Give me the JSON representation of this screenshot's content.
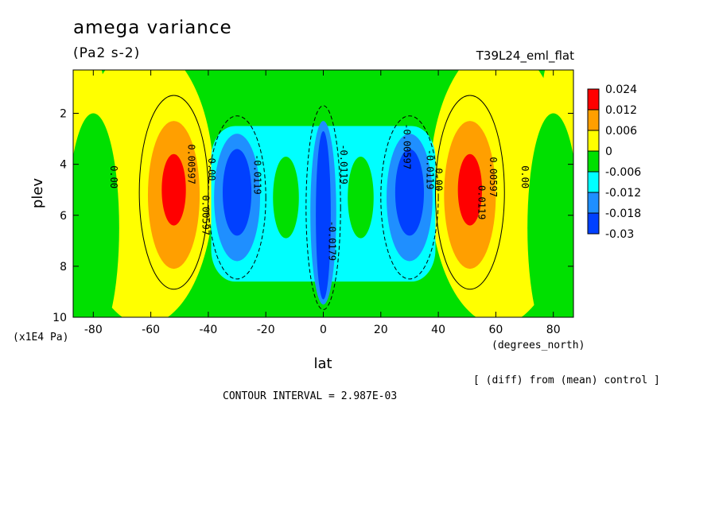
{
  "header": {
    "title": "amega variance",
    "units": "(Pa2 s-2)",
    "run": "T39L24_eml_flat"
  },
  "footer": {
    "diff_note": "[ (diff) from (mean) control ]",
    "contour_interval": "CONTOUR INTERVAL = 2.987E-03"
  },
  "chart_data": {
    "type": "heatmap",
    "title": "amega variance",
    "xlabel": "lat",
    "xunit": "(degrees_north)",
    "ylabel": "plev",
    "yunit": "(x1E4 Pa)",
    "xlim": [
      -87,
      87
    ],
    "ylim": [
      10,
      0.3
    ],
    "x_ticks": [
      -80,
      -60,
      -40,
      -20,
      0,
      20,
      40,
      60,
      80
    ],
    "x_tick_labels": [
      "-80",
      "-60",
      "-40",
      "-20",
      "0",
      "20",
      "40",
      "60",
      "80"
    ],
    "y_ticks": [
      2,
      4,
      6,
      8,
      10
    ],
    "y_tick_labels": [
      "2",
      "4",
      "6",
      "8",
      "10"
    ],
    "grid": false,
    "legend": {
      "position": "right",
      "levels": [
        "0.024",
        "0.012",
        "0.006",
        "0",
        "-0.006",
        "-0.012",
        "-0.018",
        "-0.03"
      ],
      "colors": [
        "#ff0000",
        "#ff9f00",
        "#ffff00",
        "#00e000",
        "#00ffff",
        "#1f8fff",
        "#0040ff"
      ]
    },
    "features": [
      {
        "lat": -52,
        "plev": 5.0,
        "value": 0.026
      },
      {
        "lat": 51,
        "plev": 5.0,
        "value": 0.026
      },
      {
        "lat": -30,
        "plev": 5.2,
        "value": -0.028
      },
      {
        "lat": 30,
        "plev": 5.2,
        "value": -0.028
      },
      {
        "lat": 0,
        "plev": 6.0,
        "value": -0.03
      }
    ],
    "contour_labels": [
      {
        "text": "0.00",
        "lat": -74,
        "plev": 4.5
      },
      {
        "text": "0.00597",
        "lat": -47,
        "plev": 4.0
      },
      {
        "text": "0.00597",
        "lat": -42,
        "plev": 6.0
      },
      {
        "text": "0.00",
        "lat": -40,
        "plev": 4.2
      },
      {
        "text": "-0.0119",
        "lat": -24,
        "plev": 4.4
      },
      {
        "text": "-0.0119",
        "lat": 6,
        "plev": 4.0
      },
      {
        "text": "-0.0179",
        "lat": 2,
        "plev": 7.0
      },
      {
        "text": "-0.00597",
        "lat": 28,
        "plev": 3.3
      },
      {
        "text": "-0.0119",
        "lat": 36,
        "plev": 4.2
      },
      {
        "text": "0.00",
        "lat": 39,
        "plev": 4.6
      },
      {
        "text": "0.00597",
        "lat": 58,
        "plev": 4.5
      },
      {
        "text": "0.0119",
        "lat": 54,
        "plev": 5.5
      },
      {
        "text": "0.00",
        "lat": 69,
        "plev": 4.5
      }
    ]
  }
}
